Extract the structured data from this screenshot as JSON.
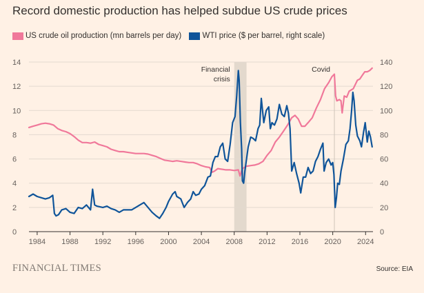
{
  "page": {
    "title": "Record domestic production has helped subdue US crude prices",
    "brand": "FINANCIAL TIMES",
    "source": "Source: EIA"
  },
  "colors": {
    "background": "#fff1e5",
    "production": "#f0789a",
    "wti": "#0f5499",
    "shade": "#e3d9cd",
    "grid": "#e3d9cf"
  },
  "chart_data": {
    "type": "line",
    "title": "Record domestic production has helped subdue US crude prices",
    "legend_position": "top-left",
    "grid": true,
    "x_axis": {
      "range": [
        1983.0,
        2024.9
      ],
      "ticks": [
        "1984",
        "1988",
        "1992",
        "1996",
        "2000",
        "2004",
        "2008",
        "2012",
        "2016",
        "2020",
        "2024"
      ]
    },
    "y_left": {
      "label": "mn barrels per day",
      "range": [
        0,
        14
      ],
      "ticks": [
        "0",
        "2",
        "4",
        "6",
        "8",
        "10",
        "12",
        "14"
      ]
    },
    "y_right": {
      "label": "$ per barrel, right scale",
      "range": [
        0,
        140
      ],
      "ticks": [
        "0",
        "20",
        "40",
        "60",
        "80",
        "100",
        "120",
        "140"
      ]
    },
    "annotations": [
      {
        "label_lines": [
          "Financial",
          "crisis"
        ],
        "type": "band",
        "x_start": 2008.0,
        "x_end": 2009.5
      },
      {
        "label_lines": [
          "Covid"
        ],
        "type": "line",
        "x": 2020.2
      }
    ],
    "series": [
      {
        "name": "US crude oil production (mn barrels per day)",
        "axis": "left",
        "x": [
          1983.0,
          1983.5,
          1984.0,
          1984.5,
          1985.0,
          1985.5,
          1986.0,
          1986.5,
          1987.0,
          1987.5,
          1988.0,
          1988.5,
          1989.0,
          1989.5,
          1990.0,
          1990.5,
          1991.0,
          1991.5,
          1992.0,
          1992.5,
          1993.0,
          1993.5,
          1994.0,
          1994.5,
          1995.0,
          1995.5,
          1996.0,
          1996.5,
          1997.0,
          1997.5,
          1998.0,
          1998.5,
          1999.0,
          1999.5,
          2000.0,
          2000.5,
          2001.0,
          2001.5,
          2002.0,
          2002.5,
          2003.0,
          2003.5,
          2004.0,
          2004.5,
          2005.0,
          2005.3,
          2005.6,
          2006.0,
          2006.5,
          2007.0,
          2007.5,
          2008.0,
          2008.5,
          2008.7,
          2009.0,
          2009.5,
          2010.0,
          2010.5,
          2011.0,
          2011.5,
          2012.0,
          2012.5,
          2013.0,
          2013.5,
          2014.0,
          2014.5,
          2015.0,
          2015.4,
          2015.8,
          2016.2,
          2016.6,
          2017.0,
          2017.5,
          2018.0,
          2018.5,
          2019.0,
          2019.5,
          2019.9,
          2020.2,
          2020.35,
          2020.5,
          2020.8,
          2021.0,
          2021.15,
          2021.4,
          2021.7,
          2022.0,
          2022.5,
          2023.0,
          2023.3,
          2023.6,
          2023.9,
          2024.2,
          2024.5,
          2024.8
        ],
        "values": [
          8.6,
          8.7,
          8.8,
          8.9,
          8.95,
          8.9,
          8.8,
          8.5,
          8.35,
          8.25,
          8.1,
          7.85,
          7.55,
          7.35,
          7.35,
          7.3,
          7.4,
          7.2,
          7.1,
          7.0,
          6.8,
          6.7,
          6.6,
          6.6,
          6.55,
          6.5,
          6.45,
          6.45,
          6.45,
          6.4,
          6.3,
          6.2,
          6.05,
          5.9,
          5.85,
          5.8,
          5.85,
          5.8,
          5.75,
          5.7,
          5.7,
          5.6,
          5.45,
          5.35,
          5.3,
          4.9,
          5.0,
          5.2,
          5.15,
          5.1,
          5.1,
          5.05,
          5.1,
          4.6,
          5.2,
          5.4,
          5.45,
          5.5,
          5.6,
          5.8,
          6.3,
          6.7,
          7.4,
          7.8,
          8.3,
          8.8,
          9.4,
          9.6,
          9.3,
          8.7,
          8.7,
          9.0,
          9.4,
          10.2,
          10.9,
          11.8,
          12.3,
          12.8,
          13.0,
          11.2,
          10.8,
          10.9,
          10.8,
          9.8,
          11.2,
          11.1,
          11.6,
          11.8,
          12.5,
          12.6,
          12.9,
          13.2,
          13.2,
          13.3,
          13.5
        ]
      },
      {
        "name": "WTI price ($ per barrel, right scale)",
        "axis": "right",
        "x": [
          1983.0,
          1983.5,
          1984.0,
          1984.5,
          1985.0,
          1985.5,
          1985.9,
          1986.1,
          1986.3,
          1986.6,
          1987.0,
          1987.5,
          1988.0,
          1988.5,
          1989.0,
          1989.5,
          1990.0,
          1990.5,
          1990.75,
          1991.0,
          1991.3,
          1992.0,
          1992.5,
          1993.0,
          1993.5,
          1994.0,
          1994.5,
          1995.0,
          1995.5,
          1996.0,
          1996.5,
          1997.0,
          1997.5,
          1998.0,
          1998.5,
          1998.9,
          1999.3,
          1999.7,
          2000.0,
          2000.5,
          2000.8,
          2001.0,
          2001.5,
          2001.9,
          2002.3,
          2002.7,
          2003.0,
          2003.3,
          2003.7,
          2004.0,
          2004.4,
          2004.8,
          2005.1,
          2005.4,
          2005.7,
          2006.0,
          2006.3,
          2006.6,
          2006.9,
          2007.2,
          2007.5,
          2007.8,
          2008.1,
          2008.3,
          2008.5,
          2008.6,
          2008.75,
          2008.9,
          2009.0,
          2009.15,
          2009.3,
          2009.5,
          2009.7,
          2010.0,
          2010.3,
          2010.6,
          2010.9,
          2011.1,
          2011.3,
          2011.6,
          2011.9,
          2012.2,
          2012.4,
          2012.6,
          2012.9,
          2013.2,
          2013.5,
          2013.8,
          2014.1,
          2014.4,
          2014.6,
          2014.8,
          2015.0,
          2015.3,
          2015.6,
          2015.9,
          2016.1,
          2016.4,
          2016.7,
          2017.0,
          2017.3,
          2017.6,
          2017.9,
          2018.2,
          2018.5,
          2018.8,
          2018.95,
          2019.2,
          2019.5,
          2019.8,
          2020.0,
          2020.15,
          2020.3,
          2020.45,
          2020.6,
          2020.8,
          2021.0,
          2021.3,
          2021.6,
          2021.9,
          2022.1,
          2022.3,
          2022.45,
          2022.6,
          2022.8,
          2023.0,
          2023.3,
          2023.5,
          2023.75,
          2023.95,
          2024.2,
          2024.4,
          2024.6,
          2024.8
        ],
        "values": [
          29,
          31,
          29,
          28,
          27,
          28,
          30,
          15,
          13,
          14,
          18,
          19,
          16,
          15,
          20,
          19,
          22,
          18,
          35,
          22,
          21,
          20,
          21,
          19,
          18,
          16,
          18,
          18,
          18,
          20,
          22,
          24,
          20,
          16,
          13,
          11,
          15,
          20,
          25,
          31,
          33,
          29,
          27,
          20,
          24,
          27,
          33,
          30,
          31,
          35,
          38,
          45,
          46,
          57,
          62,
          62,
          70,
          73,
          60,
          58,
          72,
          90,
          95,
          112,
          133,
          125,
          90,
          68,
          42,
          40,
          50,
          60,
          70,
          78,
          77,
          75,
          85,
          88,
          110,
          90,
          100,
          103,
          85,
          90,
          88,
          93,
          105,
          97,
          95,
          104,
          98,
          85,
          50,
          57,
          48,
          40,
          32,
          45,
          45,
          53,
          48,
          50,
          58,
          62,
          68,
          73,
          50,
          57,
          60,
          55,
          57,
          47,
          20,
          28,
          40,
          39,
          50,
          60,
          72,
          75,
          85,
          100,
          115,
          108,
          88,
          79,
          75,
          70,
          82,
          90,
          74,
          83,
          78,
          70
        ]
      }
    ]
  }
}
